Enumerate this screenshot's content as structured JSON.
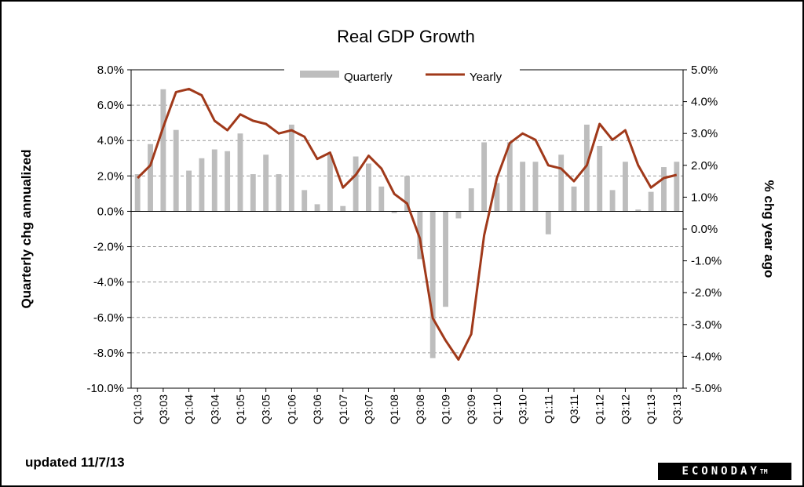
{
  "footer": {
    "updated": "updated 11/7/13",
    "logo_text": "ECONODAY",
    "logo_mark": "TM"
  },
  "colors": {
    "quarterly_bar": "#bdbdbd",
    "yearly_line": "#a0391a",
    "grid": "#9a9a9a"
  },
  "chart_data": {
    "type": "bar",
    "title": "Real GDP Growth",
    "ylabel": "Quarterly chg annualized",
    "y2label": "% chg year ago",
    "ylim": [
      -10,
      8
    ],
    "y2lim": [
      -5,
      5
    ],
    "yticks": [
      "8.0%",
      "6.0%",
      "4.0%",
      "2.0%",
      "0.0%",
      "-2.0%",
      "-4.0%",
      "-6.0%",
      "-8.0%",
      "-10.0%"
    ],
    "y2ticks": [
      "5.0%",
      "4.0%",
      "3.0%",
      "2.0%",
      "1.0%",
      "0.0%",
      "-1.0%",
      "-2.0%",
      "-3.0%",
      "-4.0%",
      "-5.0%"
    ],
    "grid": true,
    "legend_position": "top",
    "categories": [
      "Q1:03",
      "Q2:03",
      "Q3:03",
      "Q4:03",
      "Q1:04",
      "Q2:04",
      "Q3:04",
      "Q4:04",
      "Q1:05",
      "Q2:05",
      "Q3:05",
      "Q4:05",
      "Q1:06",
      "Q2:06",
      "Q3:06",
      "Q4:06",
      "Q1:07",
      "Q2:07",
      "Q3:07",
      "Q4:07",
      "Q1:08",
      "Q2:08",
      "Q3:08",
      "Q4:08",
      "Q1:09",
      "Q2:09",
      "Q3:09",
      "Q4:09",
      "Q1:10",
      "Q2:10",
      "Q3:10",
      "Q4:10",
      "Q1:11",
      "Q2:11",
      "Q3:11",
      "Q4:11",
      "Q1:12",
      "Q2:12",
      "Q3:12",
      "Q4:12",
      "Q1:13",
      "Q2:13",
      "Q3:13"
    ],
    "xtick_labels": [
      "Q1:03",
      "Q3:03",
      "Q1:04",
      "Q3:04",
      "Q1:05",
      "Q3:05",
      "Q1:06",
      "Q3:06",
      "Q1:07",
      "Q3:07",
      "Q1:08",
      "Q3:08",
      "Q1:09",
      "Q3:09",
      "Q1:10",
      "Q3:10",
      "Q1:11",
      "Q3:11",
      "Q1:12",
      "Q3:12",
      "Q1:13",
      "Q3:13"
    ],
    "series": [
      {
        "name": "Quarterly",
        "type": "bar",
        "axis": "left",
        "values": [
          2.1,
          3.8,
          6.9,
          4.6,
          2.3,
          3.0,
          3.5,
          3.4,
          4.4,
          2.1,
          3.2,
          2.1,
          4.9,
          1.2,
          0.4,
          3.2,
          0.3,
          3.1,
          2.7,
          1.4,
          -0.1,
          2.0,
          -2.7,
          -8.3,
          -5.4,
          -0.4,
          1.3,
          3.9,
          1.6,
          3.9,
          2.8,
          2.8,
          -1.3,
          3.2,
          1.4,
          4.9,
          3.7,
          1.2,
          2.8,
          0.1,
          1.1,
          2.5,
          2.8
        ]
      },
      {
        "name": "Yearly",
        "type": "line",
        "axis": "right",
        "values": [
          1.6,
          2.0,
          3.2,
          4.3,
          4.4,
          4.2,
          3.4,
          3.1,
          3.6,
          3.4,
          3.3,
          3.0,
          3.1,
          2.9,
          2.2,
          2.4,
          1.3,
          1.7,
          2.3,
          1.9,
          1.1,
          0.8,
          -0.3,
          -2.8,
          -3.5,
          -4.1,
          -3.3,
          -0.2,
          1.6,
          2.7,
          3.0,
          2.8,
          2.0,
          1.9,
          1.5,
          2.0,
          3.3,
          2.8,
          3.1,
          2.0,
          1.3,
          1.6,
          1.7
        ]
      }
    ]
  }
}
